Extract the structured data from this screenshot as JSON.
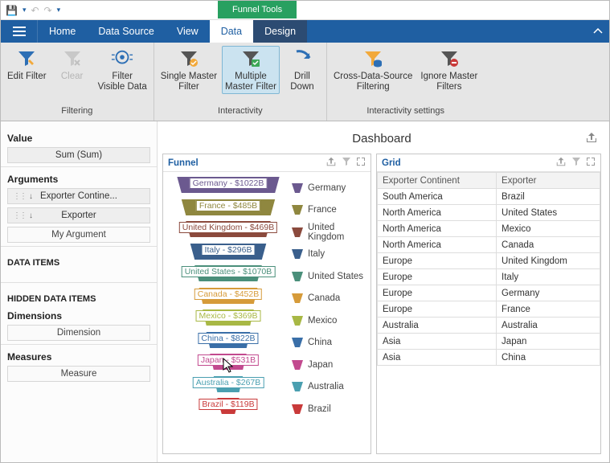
{
  "qat": {
    "context_tab": "Funnel Tools"
  },
  "tabs": {
    "home": "Home",
    "data_source": "Data Source",
    "view": "View",
    "data": "Data",
    "design": "Design"
  },
  "ribbon": {
    "groups": {
      "filtering": "Filtering",
      "interactivity": "Interactivity",
      "interactivity_settings": "Interactivity settings"
    },
    "buttons": {
      "edit_filter": "Edit Filter",
      "clear": "Clear",
      "filter_visible": "Filter\nVisible Data",
      "single_master": "Single Master\nFilter",
      "multiple_master": "Multiple\nMaster Filter",
      "drill_down": "Drill\nDown",
      "cross_ds": "Cross-Data-Source\nFiltering",
      "ignore_master": "Ignore Master\nFilters"
    }
  },
  "side": {
    "value_h": "Value",
    "value_pill": "Sum (Sum)",
    "arguments_h": "Arguments",
    "arg1": "Exporter Contine...",
    "arg2": "Exporter",
    "arg_placeholder": "My Argument",
    "data_items_h": "DATA ITEMS",
    "hidden_h": "HIDDEN DATA ITEMS",
    "dimensions_h": "Dimensions",
    "dimension_ph": "Dimension",
    "measures_h": "Measures",
    "measure_ph": "Measure"
  },
  "dashboard": {
    "title": "Dashboard"
  },
  "funnel_panel": {
    "title": "Funnel"
  },
  "grid_panel": {
    "title": "Grid",
    "col1": "Exporter Continent",
    "col2": "Exporter"
  },
  "funnel": {
    "items": [
      {
        "label": "Germany",
        "value": "$1022B",
        "color": "#6b598f",
        "widthTop": 140,
        "widthBot": 128,
        "legend": "Germany"
      },
      {
        "label": "France",
        "value": "$485B",
        "color": "#8f873f",
        "widthTop": 128,
        "widthBot": 116,
        "legend": "France"
      },
      {
        "label": "United Kingdom",
        "value": "$469B",
        "color": "#8b4a3d",
        "widthTop": 116,
        "widthBot": 104,
        "legend": "United Kingdom"
      },
      {
        "label": "Italy",
        "value": "$296B",
        "color": "#3a5f8c",
        "widthTop": 104,
        "widthBot": 92,
        "legend": "Italy"
      },
      {
        "label": "United States",
        "value": "$1070B",
        "color": "#4a8f7a",
        "widthTop": 92,
        "widthBot": 80,
        "legend": "United States"
      },
      {
        "label": "Canada",
        "value": "$452B",
        "color": "#d69b3a",
        "widthTop": 80,
        "widthBot": 70,
        "legend": "Canada"
      },
      {
        "label": "Mexico",
        "value": "$369B",
        "color": "#a8b845",
        "widthTop": 70,
        "widthBot": 60,
        "legend": "Mexico"
      },
      {
        "label": "China",
        "value": "$822B",
        "color": "#3a6fa8",
        "widthTop": 60,
        "widthBot": 50,
        "legend": "China"
      },
      {
        "label": "Japan",
        "value": "$531B",
        "color": "#c24a8f",
        "widthTop": 50,
        "widthBot": 40,
        "legend": "Japan"
      },
      {
        "label": "Australia",
        "value": "$267B",
        "color": "#4a9fb0",
        "widthTop": 40,
        "widthBot": 30,
        "legend": "Australia"
      },
      {
        "label": "Brazil",
        "value": "$119B",
        "color": "#c93a3a",
        "widthTop": 30,
        "widthBot": 18,
        "legend": "Brazil"
      }
    ]
  },
  "grid": {
    "rows": [
      {
        "c": "South America",
        "e": "Brazil"
      },
      {
        "c": "North America",
        "e": "United States"
      },
      {
        "c": "North America",
        "e": "Mexico"
      },
      {
        "c": "North America",
        "e": "Canada"
      },
      {
        "c": "Europe",
        "e": "United Kingdom"
      },
      {
        "c": "Europe",
        "e": "Italy"
      },
      {
        "c": "Europe",
        "e": "Germany"
      },
      {
        "c": "Europe",
        "e": "France"
      },
      {
        "c": "Australia",
        "e": "Australia"
      },
      {
        "c": "Asia",
        "e": "Japan"
      },
      {
        "c": "Asia",
        "e": "China"
      }
    ]
  }
}
